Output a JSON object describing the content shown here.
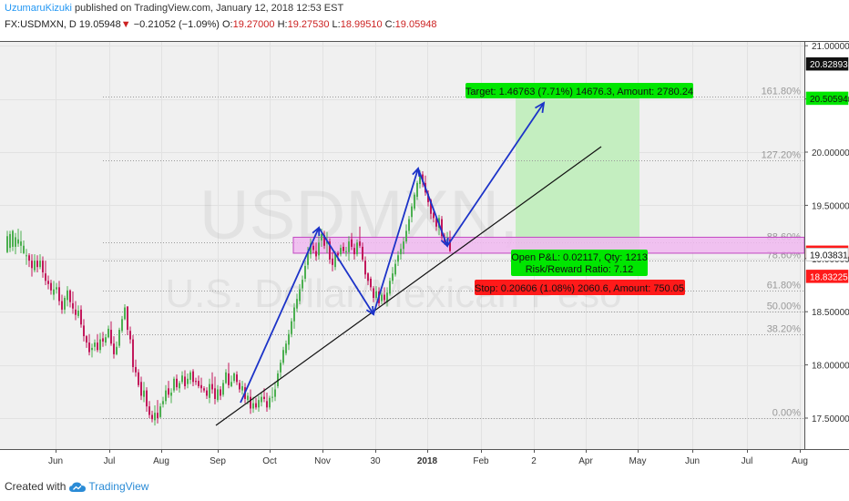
{
  "header": {
    "author": "UzumaruKizuki",
    "published": " published on TradingView.com, January 12, 2018 12:53 EST",
    "symbol": "FX:USDMXN, D",
    "last": "19.05948",
    "down_arrow": "▼",
    "change": "−0.21052 (−1.09%)",
    "o_label": "O:",
    "o_value": "19.27000",
    "h_label": "H:",
    "h_value": "19.27530",
    "l_label": "L:",
    "l_value": "18.99510",
    "c_label": "C:",
    "c_value": "19.05948"
  },
  "watermark": {
    "line1": "USDMXN, D",
    "line2": "U.S. Dollar/Mexican Peso"
  },
  "footer": {
    "created_with": "Created with",
    "brand": "TradingView"
  },
  "colors": {
    "up": "#4caf50",
    "down": "#c2185b",
    "arrow": "#1c33c8",
    "target_box": "#00e600",
    "stop_box": "#ff1a1a",
    "profit_zone": "#c4eec0",
    "supply_zone": "#f0b8f0"
  },
  "chart_data": {
    "type": "candlestick",
    "instrument": "FX:USDMXN, D",
    "y_ticks": [
      "21.00000",
      "20.50000",
      "20.00000",
      "19.50000",
      "19.00000",
      "18.50000",
      "18.00000",
      "17.50000"
    ],
    "ylim": [
      17.45,
      21.25
    ],
    "x_ticks": [
      "Jun",
      "Jul",
      "Aug",
      "Sep",
      "Oct",
      "Nov",
      "30",
      "2018",
      "Feb",
      "2",
      "Apr",
      "May",
      "Jun",
      "Jul",
      "Aug"
    ],
    "price_labels": [
      {
        "text": "20.82893",
        "value": 20.82893,
        "style": "black"
      },
      {
        "text": "20.50594",
        "value": 20.50594,
        "style": "green"
      },
      {
        "text": "19.05948",
        "value": 19.05948,
        "style": "red"
      },
      {
        "text": "19.03831",
        "value": 19.03831,
        "style": "white"
      },
      {
        "text": "18.83225",
        "value": 18.83225,
        "style": "red"
      }
    ],
    "fib_levels": [
      {
        "label": "161.80%",
        "value": 20.52
      },
      {
        "label": "127.20%",
        "value": 19.92
      },
      {
        "label": "88.60%",
        "value": 19.15
      },
      {
        "label": "78.60%",
        "value": 18.98
      },
      {
        "label": "61.80%",
        "value": 18.7
      },
      {
        "label": "50.00%",
        "value": 18.5
      },
      {
        "label": "38.20%",
        "value": 18.29
      },
      {
        "label": "0.00%",
        "value": 17.5
      }
    ],
    "position": {
      "target_label": "Target: 1.46763 (7.71%) 14676.3, Amount: 2780.24",
      "open_pnl": "Open P&L: 0.02117, Qty: 1213",
      "risk_reward": "Risk/Reward Ratio: 7.12",
      "stop_label": "Stop: 0.20606 (1.08%) 2060.6, Amount: 750.05"
    },
    "candles": [
      [
        19.06,
        19.05,
        19.26,
        19.21
      ],
      [
        19.1,
        19.06,
        19.26,
        19.23
      ],
      [
        19.11,
        19.07,
        19.27,
        19.26
      ],
      [
        19.11,
        19.04,
        19.24,
        19.2
      ],
      [
        19.14,
        19.11,
        19.28,
        19.18
      ],
      [
        19.12,
        19.05,
        19.26,
        19.16
      ],
      [
        19.05,
        19.04,
        19.17,
        19.12
      ],
      [
        19.03,
        18.94,
        19.09,
        19.03
      ],
      [
        19.03,
        18.92,
        19.05,
        18.98
      ],
      [
        18.98,
        18.83,
        19.04,
        18.91
      ],
      [
        18.89,
        18.87,
        19.04,
        18.98
      ],
      [
        18.98,
        18.87,
        19.03,
        18.92
      ],
      [
        18.92,
        18.9,
        19.04,
        18.98
      ],
      [
        18.98,
        18.82,
        19.02,
        18.87
      ],
      [
        18.86,
        18.75,
        18.98,
        18.79
      ],
      [
        18.79,
        18.71,
        18.84,
        18.76
      ],
      [
        18.77,
        18.66,
        18.8,
        18.7
      ],
      [
        18.66,
        18.61,
        18.79,
        18.71
      ],
      [
        18.71,
        18.67,
        18.77,
        18.73
      ],
      [
        18.73,
        18.56,
        18.79,
        18.6
      ],
      [
        18.6,
        18.48,
        18.66,
        18.52
      ],
      [
        18.52,
        18.48,
        18.65,
        18.63
      ],
      [
        18.61,
        18.55,
        18.74,
        18.7
      ],
      [
        18.7,
        18.54,
        18.71,
        18.59
      ],
      [
        18.58,
        18.48,
        18.69,
        18.53
      ],
      [
        18.52,
        18.42,
        18.6,
        18.47
      ],
      [
        18.46,
        18.44,
        18.56,
        18.51
      ],
      [
        18.52,
        18.35,
        18.56,
        18.38
      ],
      [
        18.37,
        18.22,
        18.43,
        18.27
      ],
      [
        18.27,
        18.16,
        18.28,
        18.21
      ],
      [
        18.21,
        18.09,
        18.29,
        18.12
      ],
      [
        18.14,
        18.07,
        18.2,
        18.16
      ],
      [
        18.17,
        18.13,
        18.24,
        18.21
      ],
      [
        18.21,
        18.12,
        18.29,
        18.14
      ],
      [
        18.14,
        18.11,
        18.3,
        18.24
      ],
      [
        18.25,
        18.17,
        18.31,
        18.22
      ],
      [
        18.21,
        18.18,
        18.29,
        18.26
      ],
      [
        18.26,
        18.25,
        18.37,
        18.34
      ],
      [
        18.33,
        18.18,
        18.41,
        18.2
      ],
      [
        18.2,
        18.06,
        18.27,
        18.1
      ],
      [
        18.1,
        18.09,
        18.22,
        18.17
      ],
      [
        18.18,
        18.16,
        18.35,
        18.33
      ],
      [
        18.32,
        18.3,
        18.46,
        18.43
      ],
      [
        18.43,
        18.42,
        18.57,
        18.54
      ],
      [
        18.55,
        18.28,
        18.55,
        18.33
      ],
      [
        18.32,
        18.2,
        18.36,
        18.24
      ],
      [
        18.24,
        17.93,
        18.28,
        17.98
      ],
      [
        17.98,
        17.89,
        18.05,
        17.93
      ],
      [
        17.93,
        17.79,
        17.96,
        17.81
      ],
      [
        17.84,
        17.67,
        17.89,
        17.71
      ],
      [
        17.7,
        17.65,
        17.84,
        17.76
      ],
      [
        17.76,
        17.56,
        17.79,
        17.61
      ],
      [
        17.61,
        17.5,
        17.66,
        17.53
      ],
      [
        17.53,
        17.46,
        17.57,
        17.49
      ],
      [
        17.48,
        17.43,
        17.62,
        17.55
      ],
      [
        17.55,
        17.45,
        17.67,
        17.5
      ],
      [
        17.51,
        17.5,
        17.64,
        17.61
      ],
      [
        17.63,
        17.6,
        17.7,
        17.66
      ],
      [
        17.66,
        17.63,
        17.81,
        17.76
      ],
      [
        17.78,
        17.69,
        17.85,
        17.72
      ],
      [
        17.71,
        17.64,
        17.78,
        17.74
      ],
      [
        17.76,
        17.74,
        17.89,
        17.87
      ],
      [
        17.87,
        17.76,
        17.91,
        17.79
      ],
      [
        17.78,
        17.74,
        17.85,
        17.83
      ],
      [
        17.84,
        17.82,
        17.94,
        17.9
      ],
      [
        17.89,
        17.77,
        17.95,
        17.8
      ],
      [
        17.82,
        17.78,
        17.92,
        17.87
      ],
      [
        17.86,
        17.82,
        17.95,
        17.93
      ],
      [
        17.94,
        17.8,
        17.96,
        17.84
      ],
      [
        17.85,
        17.81,
        17.88,
        17.84
      ],
      [
        17.85,
        17.78,
        17.9,
        17.8
      ],
      [
        17.81,
        17.74,
        17.88,
        17.78
      ],
      [
        17.78,
        17.74,
        17.8,
        17.76
      ],
      [
        17.76,
        17.68,
        17.79,
        17.71
      ],
      [
        17.69,
        17.64,
        17.87,
        17.82
      ],
      [
        17.82,
        17.73,
        17.93,
        17.77
      ],
      [
        17.78,
        17.63,
        17.89,
        17.68
      ],
      [
        17.67,
        17.65,
        17.81,
        17.77
      ],
      [
        17.77,
        17.67,
        17.8,
        17.71
      ],
      [
        17.72,
        17.7,
        17.86,
        17.83
      ],
      [
        17.83,
        17.82,
        17.96,
        17.93
      ],
      [
        17.92,
        17.78,
        18.02,
        17.81
      ],
      [
        17.8,
        17.79,
        17.9,
        17.84
      ],
      [
        17.85,
        17.83,
        17.93,
        17.92
      ],
      [
        17.91,
        17.81,
        17.94,
        17.84
      ],
      [
        17.83,
        17.74,
        17.86,
        17.77
      ],
      [
        17.76,
        17.72,
        17.85,
        17.8
      ],
      [
        17.79,
        17.64,
        17.83,
        17.68
      ],
      [
        17.67,
        17.63,
        17.74,
        17.71
      ],
      [
        17.7,
        17.54,
        17.77,
        17.59
      ],
      [
        17.59,
        17.55,
        17.7,
        17.64
      ],
      [
        17.64,
        17.58,
        17.69,
        17.6
      ],
      [
        17.6,
        17.56,
        17.71,
        17.67
      ],
      [
        17.65,
        17.61,
        17.74,
        17.7
      ],
      [
        17.7,
        17.65,
        17.78,
        17.68
      ],
      [
        17.66,
        17.56,
        17.74,
        17.6
      ],
      [
        17.6,
        17.58,
        17.71,
        17.69
      ],
      [
        17.7,
        17.65,
        17.79,
        17.7
      ],
      [
        17.7,
        17.66,
        17.84,
        17.77
      ],
      [
        17.8,
        17.78,
        17.95,
        17.92
      ],
      [
        17.93,
        17.88,
        18.05,
        18.02
      ],
      [
        18.02,
        18.0,
        18.17,
        18.14
      ],
      [
        18.11,
        18.09,
        18.23,
        18.2
      ],
      [
        18.19,
        18.14,
        18.33,
        18.29
      ],
      [
        18.29,
        18.26,
        18.44,
        18.41
      ],
      [
        18.41,
        18.34,
        18.58,
        18.54
      ],
      [
        18.53,
        18.5,
        18.67,
        18.62
      ],
      [
        18.6,
        18.57,
        18.76,
        18.71
      ],
      [
        18.72,
        18.69,
        18.84,
        18.8
      ],
      [
        18.81,
        18.78,
        18.97,
        18.93
      ],
      [
        18.94,
        18.9,
        19.11,
        19.06
      ],
      [
        19.04,
        19.0,
        19.19,
        19.14
      ],
      [
        19.12,
        19.05,
        19.15,
        19.08
      ],
      [
        19.07,
        18.98,
        19.15,
        19.02
      ],
      [
        19.03,
        18.99,
        19.21,
        19.15
      ],
      [
        19.17,
        19.11,
        19.28,
        19.23
      ],
      [
        19.22,
        19.09,
        19.26,
        19.12
      ],
      [
        19.14,
        19.05,
        19.25,
        19.16
      ],
      [
        19.16,
        18.95,
        19.19,
        18.99
      ],
      [
        19.0,
        18.88,
        19.06,
        18.94
      ],
      [
        18.92,
        18.89,
        19.07,
        19.04
      ],
      [
        19.05,
        18.98,
        19.07,
        19.03
      ],
      [
        19.04,
        19.02,
        19.13,
        19.1
      ],
      [
        19.11,
        19.05,
        19.15,
        19.07
      ],
      [
        19.06,
        19.02,
        19.11,
        19.07
      ],
      [
        19.06,
        18.98,
        19.21,
        19.16
      ],
      [
        19.18,
        19.08,
        19.24,
        19.11
      ],
      [
        19.1,
        18.99,
        19.14,
        19.04
      ],
      [
        19.04,
        19.02,
        19.18,
        19.15
      ],
      [
        19.16,
        19.1,
        19.3,
        19.12
      ],
      [
        19.11,
        18.97,
        19.15,
        18.99
      ],
      [
        18.98,
        18.81,
        19.02,
        18.85
      ],
      [
        18.86,
        18.75,
        18.87,
        18.79
      ],
      [
        18.81,
        18.7,
        18.83,
        18.73
      ],
      [
        18.72,
        18.59,
        18.74,
        18.63
      ],
      [
        18.63,
        18.61,
        18.74,
        18.69
      ],
      [
        18.69,
        18.55,
        18.73,
        18.58
      ],
      [
        18.6,
        18.57,
        18.68,
        18.66
      ],
      [
        18.66,
        18.57,
        18.73,
        18.61
      ],
      [
        18.59,
        18.55,
        18.73,
        18.68
      ],
      [
        18.67,
        18.65,
        18.82,
        18.79
      ],
      [
        18.79,
        18.76,
        18.92,
        18.86
      ],
      [
        18.85,
        18.83,
        18.99,
        18.95
      ],
      [
        18.97,
        18.93,
        19.07,
        19.03
      ],
      [
        19.04,
        18.99,
        19.14,
        19.09
      ],
      [
        19.09,
        19.04,
        19.2,
        19.16
      ],
      [
        19.16,
        19.14,
        19.32,
        19.26
      ],
      [
        19.26,
        19.23,
        19.4,
        19.37
      ],
      [
        19.39,
        19.34,
        19.52,
        19.49
      ],
      [
        19.47,
        19.45,
        19.62,
        19.6
      ],
      [
        19.58,
        19.55,
        19.73,
        19.71
      ],
      [
        19.7,
        19.66,
        19.83,
        19.8
      ],
      [
        19.79,
        19.67,
        19.82,
        19.72
      ],
      [
        19.71,
        19.59,
        19.78,
        19.62
      ],
      [
        19.61,
        19.49,
        19.64,
        19.53
      ],
      [
        19.55,
        19.37,
        19.56,
        19.42
      ],
      [
        19.43,
        19.34,
        19.47,
        19.38
      ],
      [
        19.38,
        19.26,
        19.4,
        19.3
      ],
      [
        19.29,
        19.22,
        19.41,
        19.38
      ],
      [
        19.37,
        19.17,
        19.4,
        19.21
      ],
      [
        19.19,
        19.13,
        19.24,
        19.16
      ],
      [
        19.17,
        19.15,
        19.25,
        19.18
      ],
      [
        19.18,
        19.06,
        19.26,
        19.07
      ]
    ]
  }
}
